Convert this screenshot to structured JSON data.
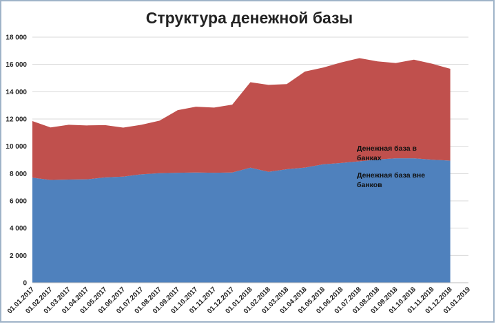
{
  "chart_data": {
    "type": "stacked_area",
    "title": "Структура денежной базы",
    "categories": [
      "01.01.2017",
      "01.02.2017",
      "01.03.2017",
      "01.04.2017",
      "01.05.2017",
      "01.06.2017",
      "01.07.2017",
      "01.08.2017",
      "01.09.2017",
      "01.10.2017",
      "01.11.2017",
      "01.12.2017",
      "01.01.2018",
      "01.02.2018",
      "01.03.2018",
      "01.04.2018",
      "01.05.2018",
      "01.06.2018",
      "01.07.2018",
      "01.08.2018",
      "01.09.2018",
      "01.10.2018",
      "01.11.2018",
      "01.12.2018",
      "01.01.2019"
    ],
    "series": [
      {
        "name": "Денежная база вне банков",
        "color": "#4f81bd",
        "values": [
          7700,
          7530,
          7560,
          7580,
          7720,
          7780,
          7950,
          8030,
          8060,
          8080,
          8060,
          8080,
          8430,
          8130,
          8320,
          8440,
          8680,
          8780,
          8900,
          9030,
          9120,
          9120,
          9020,
          8950,
          null
        ]
      },
      {
        "name": "Денежная база в банках",
        "color": "#c0504d",
        "values": [
          4150,
          3850,
          4020,
          3950,
          3830,
          3590,
          3630,
          3850,
          4590,
          4820,
          4780,
          4970,
          6270,
          6370,
          6240,
          7040,
          7090,
          7370,
          7560,
          7190,
          6980,
          7230,
          7030,
          6730,
          null
        ]
      }
    ],
    "ylim": [
      0,
      18000
    ],
    "yticks": [
      0,
      {
        "value": 2000,
        "label": "2 000"
      },
      {
        "value": 4000,
        "label": "4 000"
      },
      {
        "value": 6000,
        "label": "6 000"
      },
      {
        "value": 8000,
        "label": "8 000"
      },
      {
        "value": 10000,
        "label": "10 000"
      },
      {
        "value": 12000,
        "label": "12 000"
      },
      {
        "value": 14000,
        "label": "14 000"
      },
      {
        "value": 16000,
        "label": "16 000"
      },
      {
        "value": 18000,
        "label": "18 000"
      }
    ],
    "grid": true
  }
}
